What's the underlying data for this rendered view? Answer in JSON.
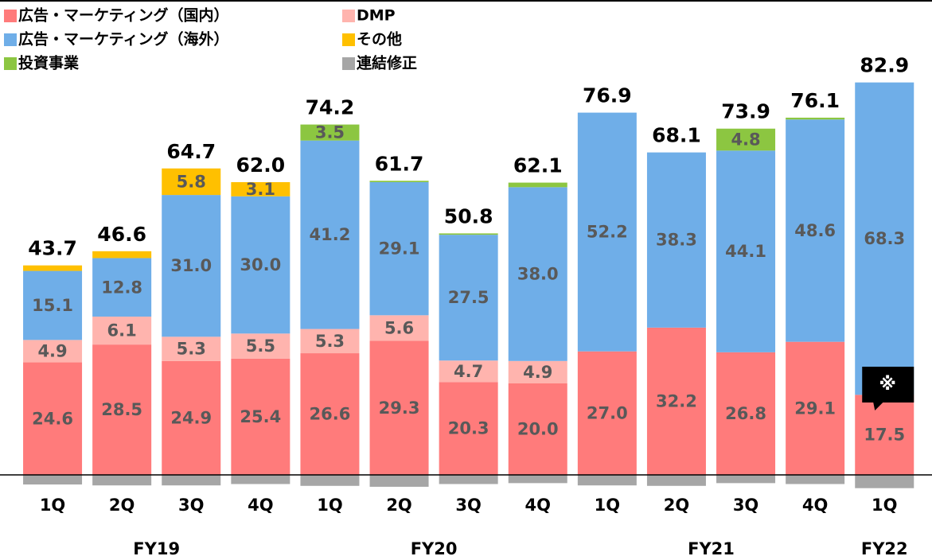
{
  "chart_data": {
    "type": "stacked_bar",
    "groups": [
      {
        "name": "FY19",
        "categories": [
          "1Q",
          "2Q",
          "3Q",
          "4Q"
        ]
      },
      {
        "name": "FY20",
        "categories": [
          "1Q",
          "2Q",
          "3Q",
          "4Q"
        ]
      },
      {
        "name": "FY21",
        "categories": [
          "1Q",
          "2Q",
          "3Q",
          "4Q"
        ]
      },
      {
        "name": "FY22",
        "categories": [
          "1Q"
        ]
      }
    ],
    "series": [
      {
        "name": "広告・マーケティング（国内）",
        "color": "#ff7b7b",
        "values": [
          24.6,
          28.5,
          24.9,
          25.4,
          26.6,
          29.3,
          20.3,
          20.0,
          27.0,
          32.2,
          26.8,
          29.1,
          17.5
        ],
        "value_labels": [
          "24.6",
          "28.5",
          "24.9",
          "25.4",
          "26.6",
          "29.3",
          "20.3",
          "20.0",
          "27.0",
          "32.2",
          "26.8",
          "29.1",
          "17.5"
        ]
      },
      {
        "name": "DMP",
        "color": "#ffb4ae",
        "values": [
          4.9,
          6.1,
          5.3,
          5.5,
          5.3,
          5.6,
          4.7,
          4.9,
          0,
          0,
          0,
          0,
          0
        ],
        "value_labels": [
          "4.9",
          "6.1",
          "5.3",
          "5.5",
          "5.3",
          "5.6",
          "4.7",
          "4.9",
          null,
          null,
          null,
          null,
          null
        ]
      },
      {
        "name": "広告・マーケティング（海外）",
        "color": "#6faee8",
        "values": [
          15.1,
          12.8,
          31.0,
          30.0,
          41.2,
          29.1,
          27.5,
          38.0,
          52.2,
          38.3,
          44.1,
          48.6,
          68.3
        ],
        "value_labels": [
          "15.1",
          "12.8",
          "31.0",
          "30.0",
          "41.2",
          "29.1",
          "27.5",
          "38.0",
          "52.2",
          "38.3",
          "44.1",
          "48.6",
          "68.3"
        ]
      },
      {
        "name": "その他",
        "color": "#ffc000",
        "values": [
          1.2,
          1.5,
          5.8,
          3.1,
          0,
          0,
          0,
          0,
          0,
          0,
          0,
          0,
          0
        ],
        "value_labels": [
          null,
          null,
          "5.8",
          "3.1",
          null,
          null,
          null,
          null,
          null,
          null,
          null,
          null,
          null
        ]
      },
      {
        "name": "投資事業",
        "color": "#8cc641",
        "values": [
          0,
          0,
          0,
          0,
          3.5,
          0.3,
          0.3,
          1.0,
          0,
          0,
          4.8,
          0.4,
          0
        ],
        "value_labels": [
          null,
          null,
          null,
          null,
          "3.5",
          null,
          null,
          null,
          null,
          null,
          "4.8",
          null,
          null
        ]
      },
      {
        "name": "連結修正",
        "color": "#a6a6a6",
        "values": [
          -2.1,
          -2.3,
          -2.3,
          -2.0,
          -2.4,
          -2.6,
          -2.0,
          -1.8,
          -2.3,
          -2.4,
          -1.8,
          -2.0,
          -2.9
        ],
        "value_labels": [
          null,
          null,
          null,
          null,
          null,
          null,
          null,
          null,
          null,
          null,
          null,
          null,
          null
        ]
      }
    ],
    "totals": {
      "values": [
        43.7,
        46.6,
        64.7,
        62.0,
        74.2,
        61.7,
        50.8,
        62.1,
        76.9,
        68.1,
        73.9,
        76.1,
        82.9
      ],
      "value_labels": [
        "43.7",
        "46.6",
        "64.7",
        "62.0",
        "74.2",
        "61.7",
        "50.8",
        "62.1",
        "76.9",
        "68.1",
        "73.9",
        "76.1",
        "82.9"
      ]
    },
    "annotation": "※",
    "ylim": [
      -4,
      90
    ]
  }
}
